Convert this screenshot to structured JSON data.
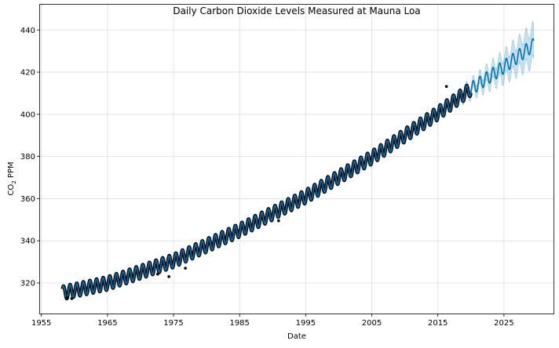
{
  "chart_data": {
    "type": "line",
    "title": "Daily Carbon Dioxide Levels Measured at Mauna Loa",
    "xlabel": "Date",
    "ylabel_main": "CO",
    "ylabel_sub": "2",
    "ylabel_rest": " PPM",
    "x_ticks": [
      1955,
      1965,
      1975,
      1985,
      1995,
      2005,
      2015,
      2025
    ],
    "y_ticks": [
      320,
      340,
      360,
      380,
      400,
      420,
      440
    ],
    "xlim": [
      1954.8,
      2032.5
    ],
    "ylim": [
      305.5,
      452
    ],
    "grid": true,
    "seasonal_amplitude": 3.2,
    "trend_points": [
      {
        "x": 1958.2,
        "y": 315.3
      },
      {
        "x": 1965.0,
        "y": 319.8
      },
      {
        "x": 1975.0,
        "y": 330.5
      },
      {
        "x": 1985.0,
        "y": 345.0
      },
      {
        "x": 1995.0,
        "y": 361.0
      },
      {
        "x": 2005.0,
        "y": 379.5
      },
      {
        "x": 2015.0,
        "y": 400.5
      },
      {
        "x": 2020.0,
        "y": 412.0
      },
      {
        "x": 2025.0,
        "y": 422.5
      },
      {
        "x": 2029.5,
        "y": 433.0
      }
    ],
    "observed_range": [
      1958.2,
      2020.0
    ],
    "forecast_range": [
      2018.8,
      2029.5
    ],
    "uncertainty_halfwidth_start": 1.5,
    "uncertainty_halfwidth_end": 8.0,
    "outliers": [
      {
        "x": 1958.9,
        "y": 313.0
      },
      {
        "x": 1959.6,
        "y": 312.6
      },
      {
        "x": 1972.6,
        "y": 324.2
      },
      {
        "x": 1974.3,
        "y": 323.0
      },
      {
        "x": 1976.8,
        "y": 327.0
      },
      {
        "x": 1990.9,
        "y": 349.5
      },
      {
        "x": 2016.3,
        "y": 413.2
      }
    ],
    "colors": {
      "observed": "#000000",
      "forecast": "#0072B2",
      "uncertainty": "#0072B2",
      "grid": "#dcdcdc",
      "frame": "#000000"
    }
  }
}
